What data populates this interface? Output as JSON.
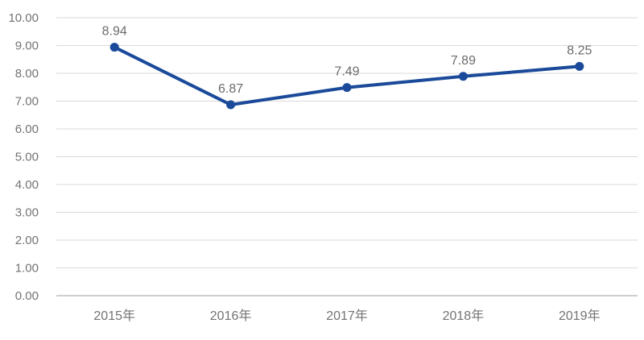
{
  "chart_data": {
    "type": "line",
    "title": "",
    "xlabel": "",
    "ylabel": "",
    "categories": [
      "2015年",
      "2016年",
      "2017年",
      "2018年",
      "2019年"
    ],
    "values": [
      8.94,
      6.87,
      7.49,
      7.89,
      8.25
    ],
    "data_labels": [
      "8.94",
      "6.87",
      "7.49",
      "7.89",
      "8.25"
    ],
    "y_ticks": [
      "0.00",
      "1.00",
      "2.00",
      "3.00",
      "4.00",
      "5.00",
      "6.00",
      "7.00",
      "8.00",
      "9.00",
      "10.00"
    ],
    "ylim": [
      0,
      10
    ],
    "grid": true,
    "legend_position": "none",
    "colors": {
      "line": "#1a4a99",
      "marker": "#1a4a99",
      "gridline": "#d9d9d9",
      "axis_line": "#bfbfbf",
      "tick_text": "#737373",
      "data_label_text": "#6b6b6b",
      "background": "#ffffff"
    }
  }
}
